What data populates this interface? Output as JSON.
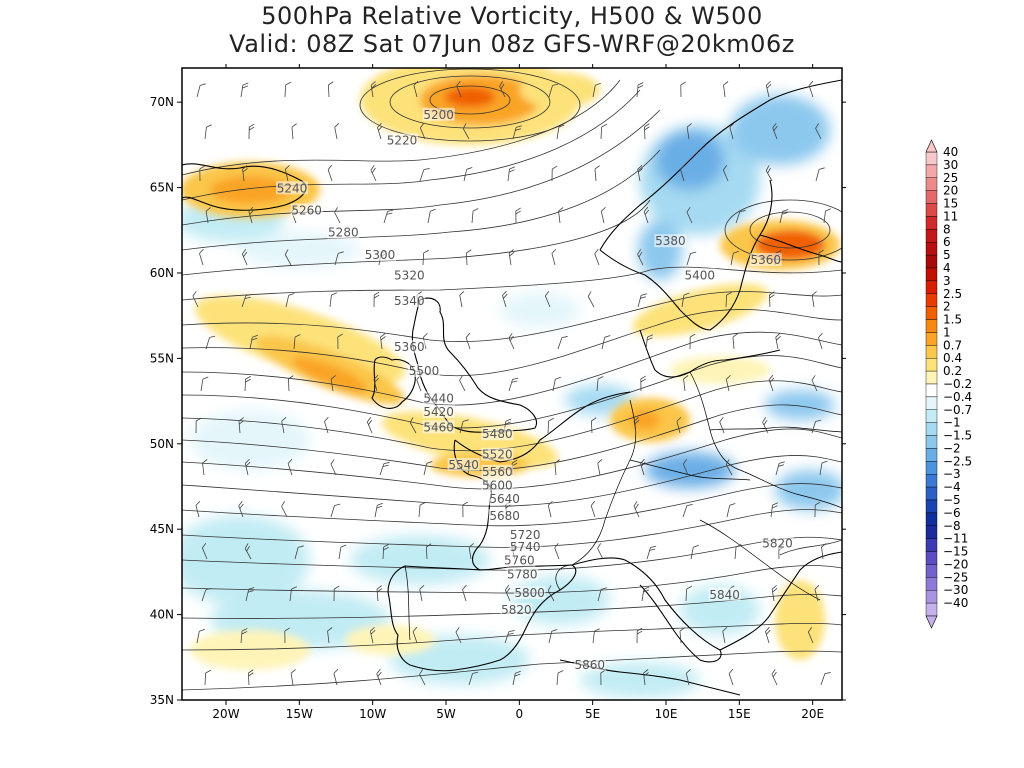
{
  "chart_data": {
    "type": "heatmap",
    "title_line1": "500hPa Relative Vorticity, H500 & W500",
    "title_line2": "Valid: 08Z Sat 07Jun 08z GFS-WRF@20km06z",
    "x_ticks": [
      "20W",
      "15W",
      "10W",
      "5W",
      "0",
      "5E",
      "10E",
      "15E",
      "20E"
    ],
    "x_tick_values": [
      -20,
      -15,
      -10,
      -5,
      0,
      5,
      10,
      15,
      20
    ],
    "y_ticks": [
      "70N",
      "65N",
      "60N",
      "55N",
      "50N",
      "45N",
      "40N",
      "35N"
    ],
    "y_tick_values": [
      70,
      65,
      60,
      55,
      50,
      45,
      40,
      35
    ],
    "xlim": [
      -23,
      22
    ],
    "ylim": [
      35,
      72
    ],
    "grid": false,
    "legend_position": "right",
    "colorbar_labels": [
      "40",
      "30",
      "25",
      "20",
      "15",
      "11",
      "8",
      "6",
      "5",
      "4",
      "3",
      "2.5",
      "2",
      "1.5",
      "1",
      "0.7",
      "0.4",
      "0.2",
      "-0.2",
      "-0.4",
      "-0.7",
      "-1",
      "-1.5",
      "-2",
      "-2.5",
      "-3",
      "-4",
      "-5",
      "-6",
      "-8",
      "-11",
      "-15",
      "-20",
      "-25",
      "-30",
      "-40"
    ],
    "colorbar_colors": [
      "#f8c8c8",
      "#f2a8a8",
      "#ec8a8a",
      "#e46a6a",
      "#dc4a4a",
      "#d22a2a",
      "#c41818",
      "#b81010",
      "#a80a0a",
      "#c01000",
      "#d82000",
      "#e83c00",
      "#f06000",
      "#f68a10",
      "#faa428",
      "#fbc64a",
      "#fde27a",
      "#fef4b8",
      "#ffffff",
      "#e4f6fa",
      "#c2ecf4",
      "#a6daf2",
      "#8cc8ee",
      "#6aaee6",
      "#4e94dc",
      "#3a7ad4",
      "#2a60c4",
      "#1a44b0",
      "#10309c",
      "#1c2a9c",
      "#3a3cb0",
      "#5a4ec0",
      "#7462cc",
      "#8e7ad6",
      "#a894e0",
      "#c4b0ea"
    ],
    "height_contour_labels": [
      {
        "text": "5200",
        "lon": -5.5,
        "lat": 69.2
      },
      {
        "text": "5220",
        "lon": -8.0,
        "lat": 67.7
      },
      {
        "text": "5240",
        "lon": -15.5,
        "lat": 64.9
      },
      {
        "text": "5260",
        "lon": -14.5,
        "lat": 63.6
      },
      {
        "text": "5280",
        "lon": -12.0,
        "lat": 62.3
      },
      {
        "text": "5300",
        "lon": -9.5,
        "lat": 61.0
      },
      {
        "text": "5320",
        "lon": -7.5,
        "lat": 59.8
      },
      {
        "text": "5340",
        "lon": -7.5,
        "lat": 58.3
      },
      {
        "text": "5360",
        "lon": -7.5,
        "lat": 55.6
      },
      {
        "text": "5380",
        "lon": 10.3,
        "lat": 61.8
      },
      {
        "text": "5360",
        "lon": 16.8,
        "lat": 60.7
      },
      {
        "text": "5400",
        "lon": 12.3,
        "lat": 59.8
      },
      {
        "text": "5420",
        "lon": -5.5,
        "lat": 51.8
      },
      {
        "text": "5440",
        "lon": -5.5,
        "lat": 52.6
      },
      {
        "text": "5460",
        "lon": -5.5,
        "lat": 50.9
      },
      {
        "text": "5480",
        "lon": -1.5,
        "lat": 50.5
      },
      {
        "text": "5500",
        "lon": -6.5,
        "lat": 54.2
      },
      {
        "text": "5520",
        "lon": -1.5,
        "lat": 49.3
      },
      {
        "text": "5540",
        "lon": -3.8,
        "lat": 48.7
      },
      {
        "text": "5560",
        "lon": -1.5,
        "lat": 48.3
      },
      {
        "text": "5600",
        "lon": -1.5,
        "lat": 47.5
      },
      {
        "text": "5640",
        "lon": -1.0,
        "lat": 46.7
      },
      {
        "text": "5680",
        "lon": -1.0,
        "lat": 45.7
      },
      {
        "text": "5720",
        "lon": 0.4,
        "lat": 44.6
      },
      {
        "text": "5740",
        "lon": 0.4,
        "lat": 43.9
      },
      {
        "text": "5760",
        "lon": 0.0,
        "lat": 43.1
      },
      {
        "text": "5780",
        "lon": 0.2,
        "lat": 42.3
      },
      {
        "text": "5800",
        "lon": 0.7,
        "lat": 41.2
      },
      {
        "text": "5820",
        "lon": -0.2,
        "lat": 40.2
      },
      {
        "text": "5820",
        "lon": 17.6,
        "lat": 44.1
      },
      {
        "text": "5840",
        "lon": 14.0,
        "lat": 41.1
      },
      {
        "text": "5860",
        "lon": 4.8,
        "lat": 37.0
      }
    ]
  },
  "colors": {
    "land_outline": "#000000",
    "contour_line": "#333333",
    "background": "#ffffff"
  }
}
